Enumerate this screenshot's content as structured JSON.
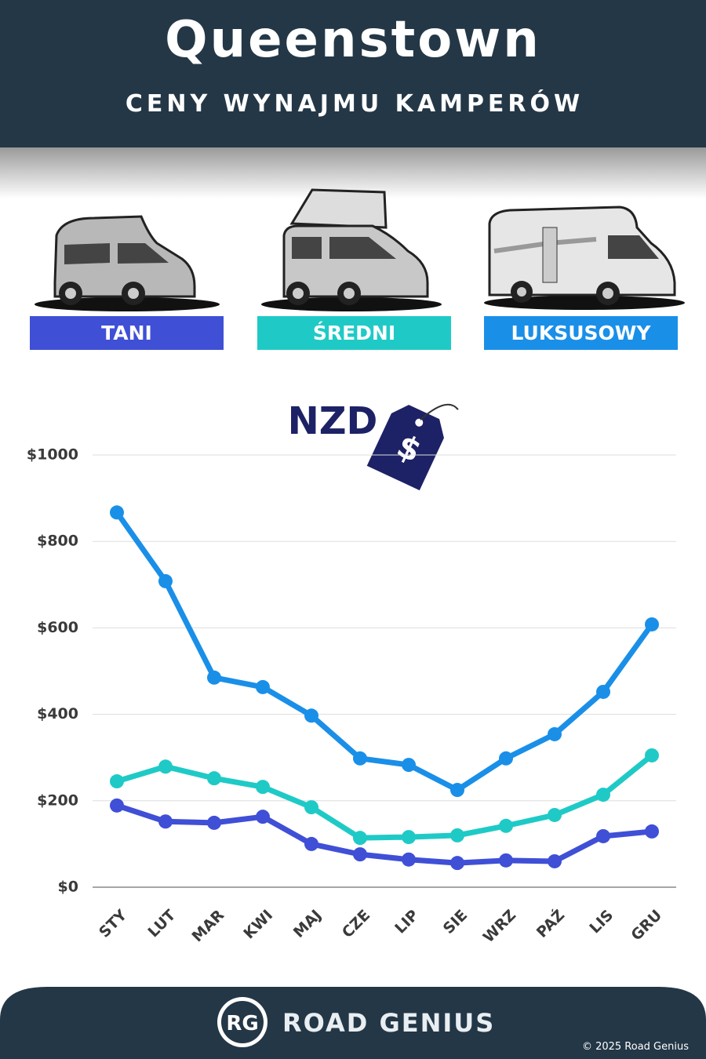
{
  "chart_data": {
    "type": "line",
    "title": "Queenstown",
    "subtitle": "CENY WYNAJMU KAMPERÓW",
    "currency": "NZD",
    "currency_symbol": "$",
    "categories": [
      "STY",
      "LUT",
      "MAR",
      "KWI",
      "MAJ",
      "CZE",
      "LIP",
      "SIE",
      "WRZ",
      "PAŹ",
      "LIS",
      "GRU"
    ],
    "series": [
      {
        "name": "TANI",
        "color": "#3f4fd6",
        "values": [
          189,
          152,
          149,
          163,
          100,
          76,
          64,
          56,
          62,
          60,
          118,
          129
        ]
      },
      {
        "name": "ŚREDNI",
        "color": "#1fcac6",
        "values": [
          245,
          279,
          252,
          232,
          185,
          114,
          116,
          120,
          142,
          167,
          214,
          305
        ]
      },
      {
        "name": "LUKSUSOWY",
        "color": "#1a8fe8",
        "values": [
          867,
          708,
          485,
          463,
          397,
          298,
          283,
          225,
          298,
          354,
          452,
          608
        ]
      }
    ],
    "ylim": [
      0,
      1000
    ],
    "yticks": [
      {
        "value": 0,
        "label": "$0"
      },
      {
        "value": 200,
        "label": "$200"
      },
      {
        "value": 400,
        "label": "$400"
      },
      {
        "value": 600,
        "label": "$600"
      },
      {
        "value": 800,
        "label": "$800"
      },
      {
        "value": 1000,
        "label": "$1000"
      }
    ],
    "grid": true,
    "brand_initials": "RG",
    "brand": "ROAD GENIUS",
    "copyright": "© 2025 Road Genius"
  }
}
